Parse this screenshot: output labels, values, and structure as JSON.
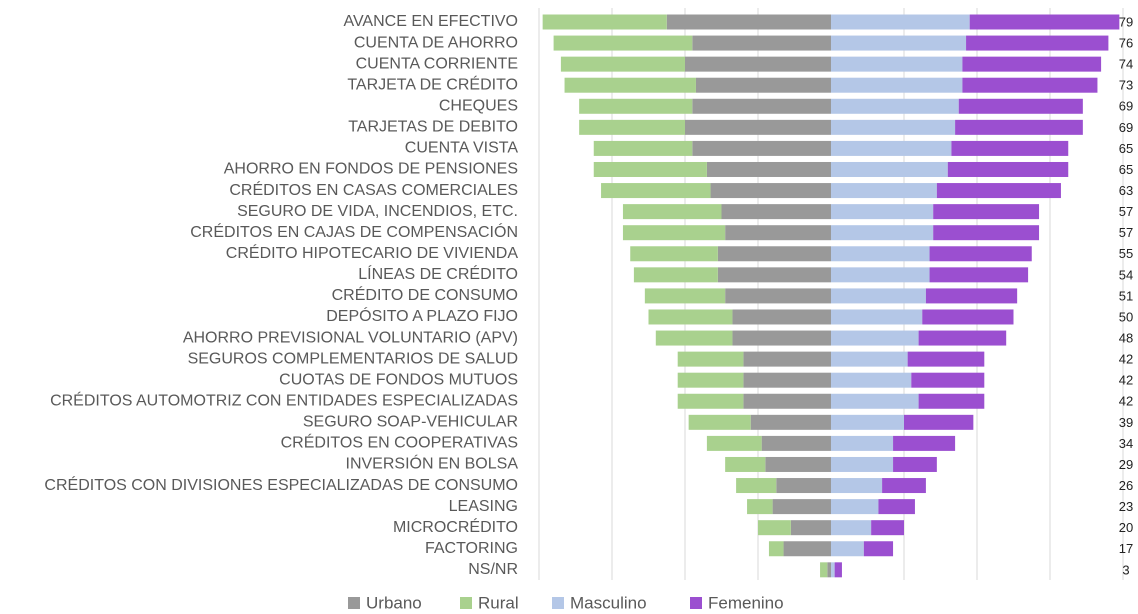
{
  "chart_data": {
    "type": "butterfly-bar",
    "categories": [
      "AVANCE EN EFECTIVO",
      "CUENTA DE AHORRO",
      "CUENTA CORRIENTE",
      "TARJETA DE CRÉDITO",
      "CHEQUES",
      "TARJETAS DE DEBITO",
      "CUENTA VISTA",
      "AHORRO EN FONDOS DE PENSIONES",
      "CRÉDITOS EN CASAS COMERCIALES",
      "SEGURO DE VIDA, INCENDIOS, ETC.",
      "CRÉDITOS EN CAJAS DE COMPENSACIÓN",
      "CRÉDITO HIPOTECARIO DE VIVIENDA",
      "LÍNEAS DE CRÉDITO",
      "CRÉDITO DE CONSUMO",
      "DEPÓSITO A PLAZO FIJO",
      "AHORRO PREVISIONAL VOLUNTARIO (APV)",
      "SEGUROS COMPLEMENTARIOS DE SALUD",
      "CUOTAS DE FONDOS MUTUOS",
      "CRÉDITOS AUTOMOTRIZ CON ENTIDADES ESPECIALIZADAS",
      "SEGURO SOAP-VEHICULAR",
      "CRÉDITOS EN COOPERATIVAS",
      "INVERSIÓN EN BOLSA",
      "CRÉDITOS CON DIVISIONES ESPECIALIZADAS DE CONSUMO",
      "LEASING",
      "MICROCRÉDITO",
      "FACTORING",
      "NS/NR"
    ],
    "series": [
      {
        "name": "Urbano",
        "color": "#999999",
        "values": [
          45,
          38,
          40,
          37,
          38,
          40,
          38,
          34,
          33,
          30,
          29,
          31,
          31,
          29,
          27,
          27,
          24,
          24,
          24,
          22,
          19,
          18,
          15,
          16,
          11,
          13,
          1
        ]
      },
      {
        "name": "Rural",
        "color": "#a9d18e",
        "values": [
          34,
          38,
          34,
          36,
          31,
          29,
          27,
          31,
          30,
          27,
          28,
          24,
          23,
          22,
          23,
          21,
          18,
          18,
          18,
          17,
          15,
          11,
          11,
          7,
          9,
          4,
          2
        ]
      },
      {
        "name": "Masculino",
        "color": "#b4c7e7",
        "values": [
          38,
          37,
          36,
          36,
          35,
          34,
          33,
          32,
          29,
          28,
          28,
          27,
          27,
          26,
          25,
          24,
          21,
          22,
          24,
          20,
          17,
          17,
          14,
          13,
          11,
          9,
          1
        ]
      },
      {
        "name": "Femenino",
        "color": "#9b4fd0",
        "values": [
          41,
          39,
          38,
          37,
          34,
          35,
          32,
          33,
          34,
          29,
          29,
          28,
          27,
          25,
          25,
          24,
          21,
          20,
          18,
          19,
          17,
          12,
          12,
          10,
          9,
          8,
          2
        ]
      }
    ],
    "totals": [
      79,
      76,
      74,
      73,
      69,
      69,
      65,
      65,
      63,
      57,
      57,
      55,
      54,
      51,
      50,
      48,
      42,
      42,
      42,
      39,
      34,
      29,
      26,
      23,
      20,
      17,
      3
    ],
    "xlim": [
      -80,
      80
    ],
    "xticks": [
      -80,
      -60,
      -40,
      -20,
      0,
      20,
      40,
      60,
      80
    ],
    "grid": true
  }
}
